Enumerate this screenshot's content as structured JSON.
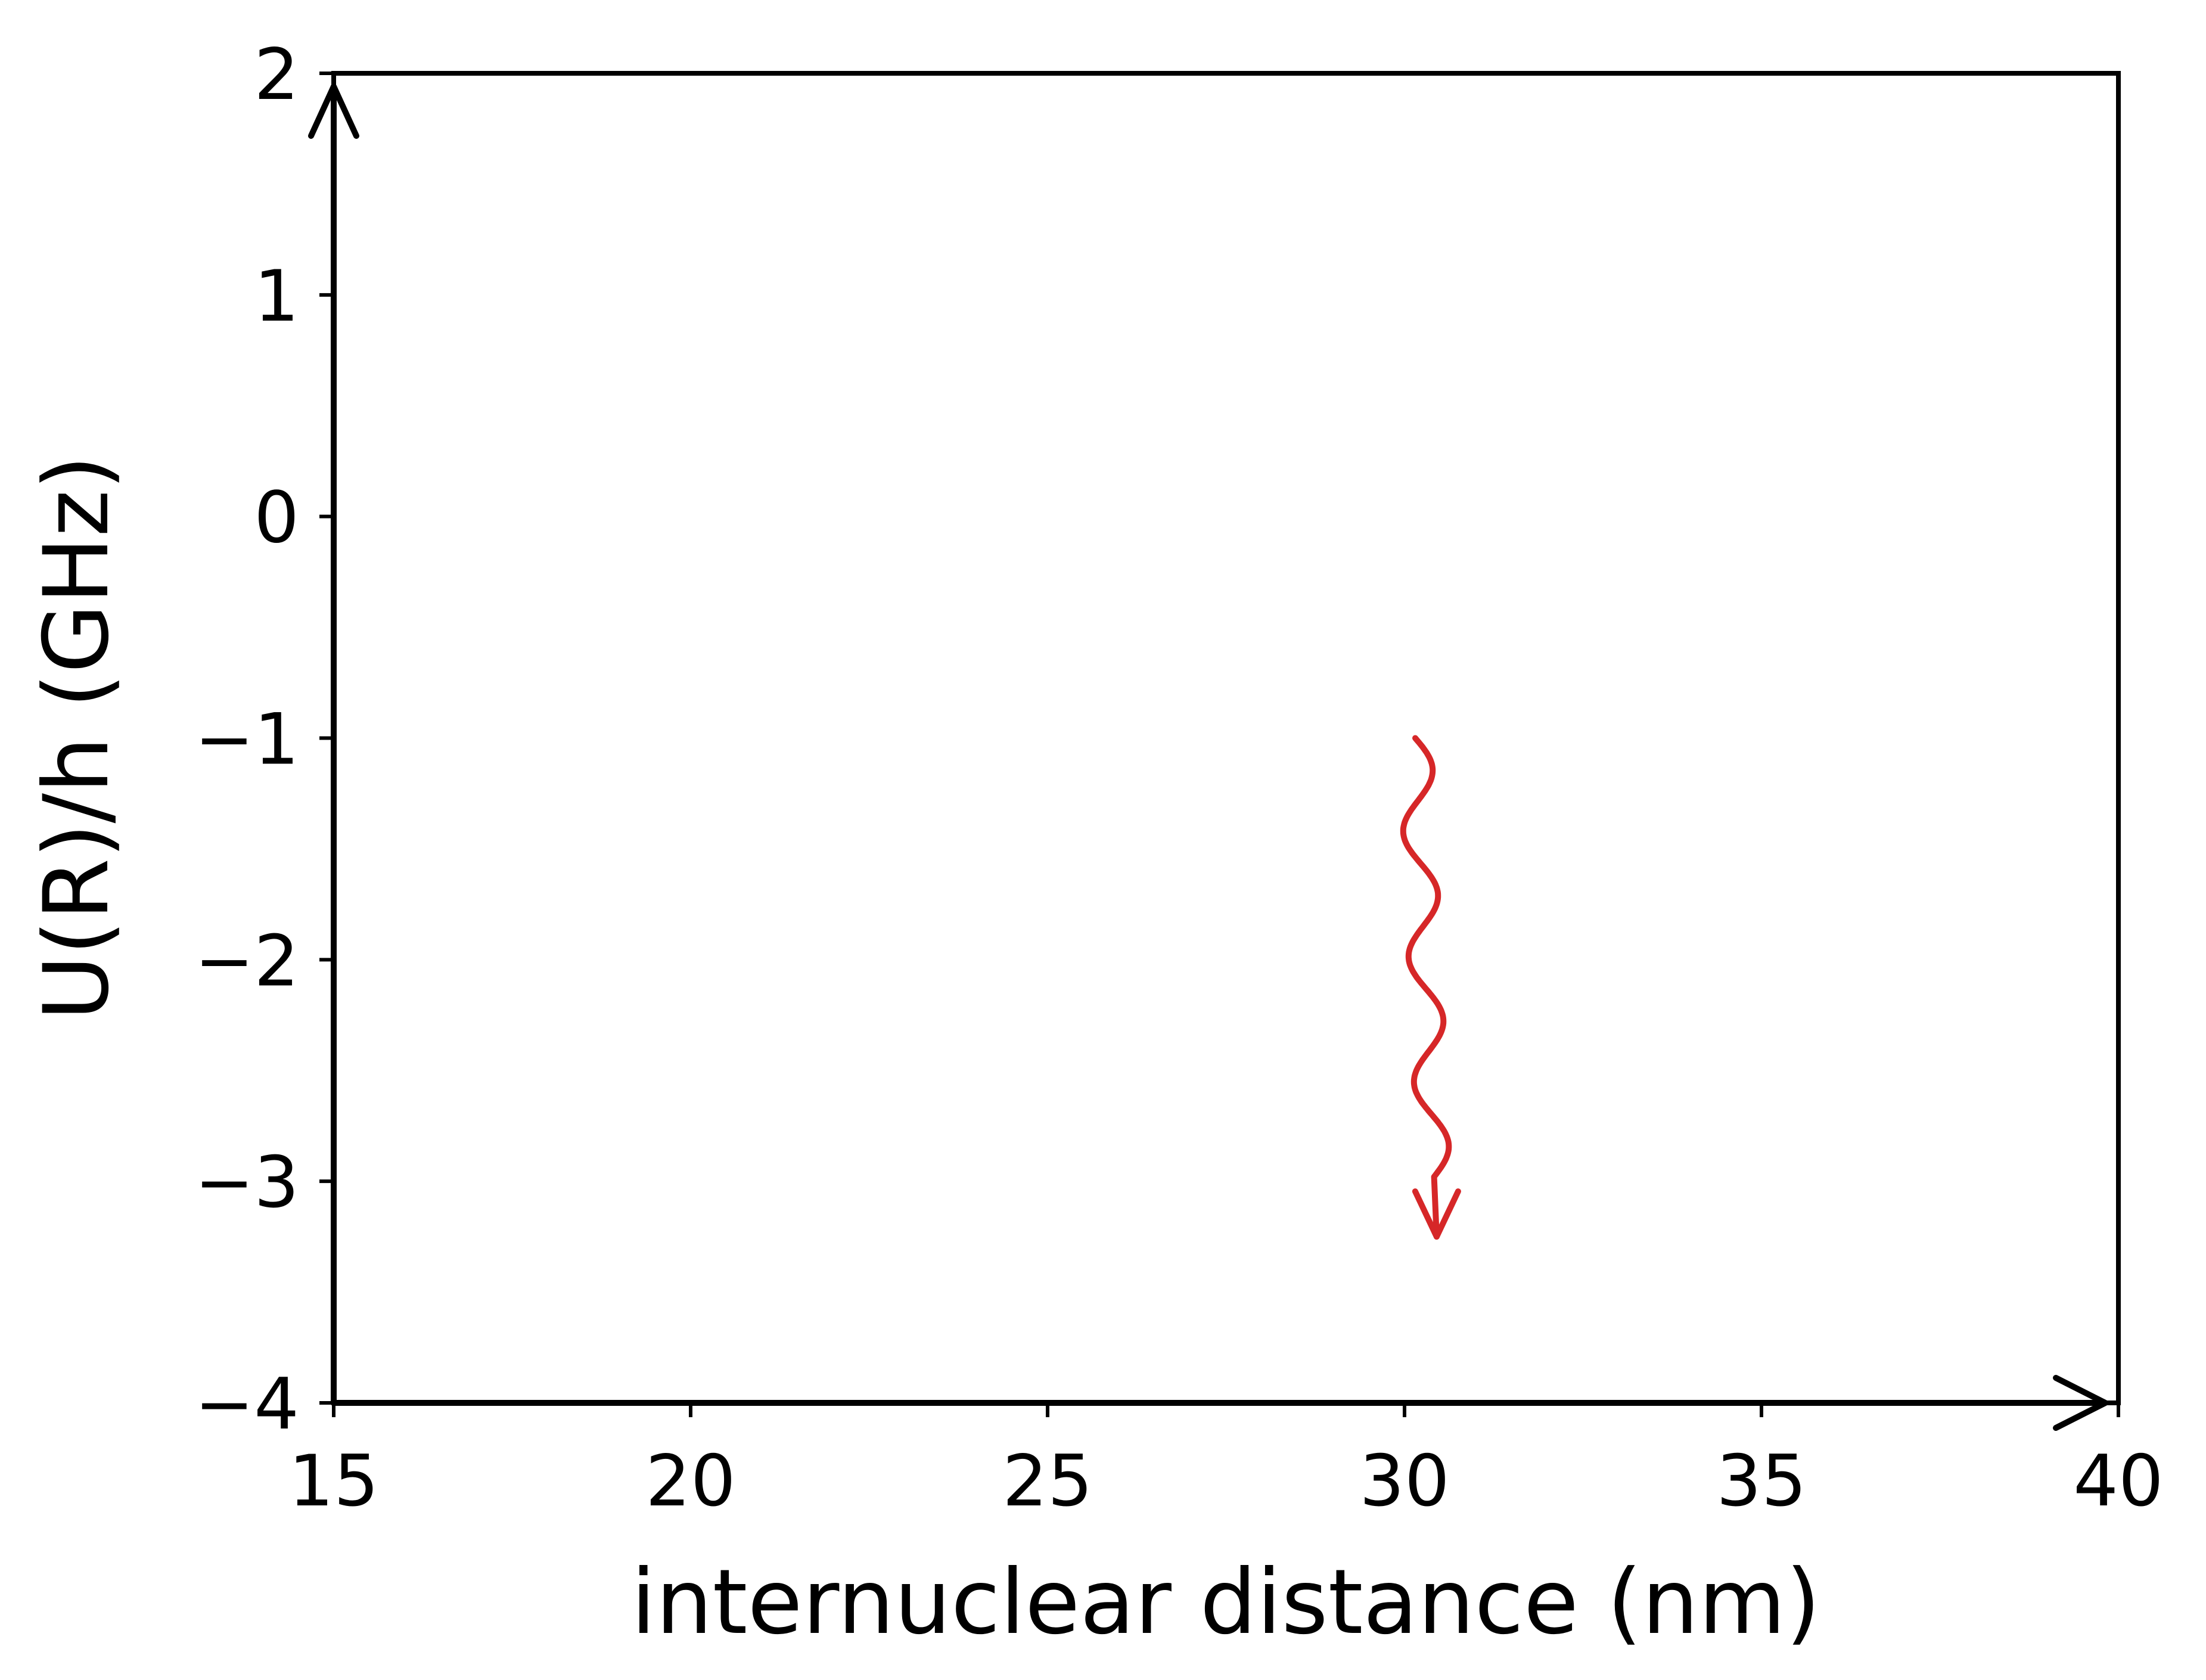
{
  "chart_data": {
    "type": "line",
    "title": "",
    "xlabel": "internuclear distance (nm)",
    "ylabel": "U(R)/h (GHz)",
    "xlim": [
      15,
      40
    ],
    "ylim": [
      -4,
      2
    ],
    "x_ticks": [
      15,
      20,
      25,
      30,
      35,
      40
    ],
    "x_tick_labels": [
      "15",
      "20",
      "25",
      "30",
      "35",
      "40"
    ],
    "y_ticks": [
      -4,
      -3,
      -2,
      -1,
      0,
      1,
      2
    ],
    "y_tick_labels": [
      "−4",
      "−3",
      "−2",
      "−1",
      "0",
      "1",
      "2"
    ],
    "grid": false,
    "legend": "none",
    "axis_arrows": true,
    "annotations": [
      {
        "type": "wavy-arrow",
        "description": "photon emission",
        "start": [
          30.15,
          -1.0
        ],
        "end": [
          30.45,
          -3.25
        ],
        "amplitude_nm": 0.45,
        "oscillations": 3.5,
        "color": "#d62728"
      }
    ]
  },
  "colors": {
    "axes": "#000000",
    "photon": "#d62728"
  }
}
